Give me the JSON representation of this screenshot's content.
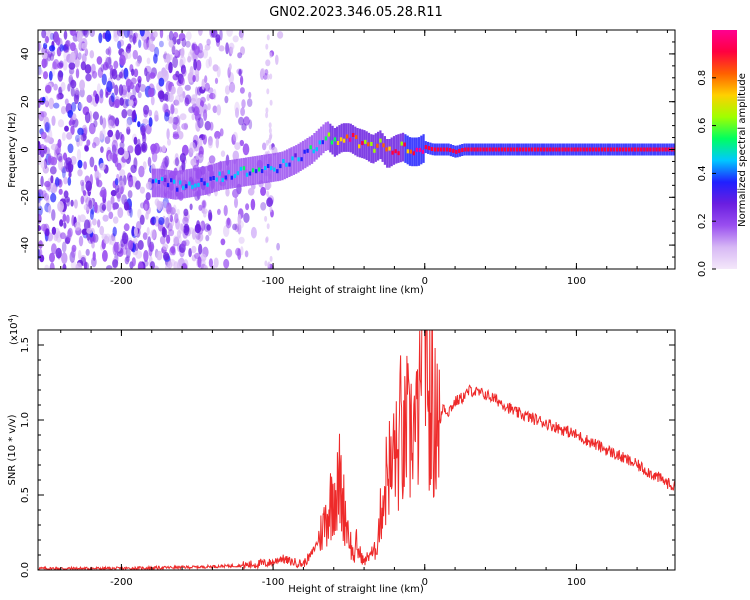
{
  "figure": {
    "title": "GN02.2023.346.05.28.R11"
  },
  "chart_data": [
    {
      "type": "heatmap",
      "panel": "spectrogram",
      "xlabel": "Height of straight line (km)",
      "ylabel": "Frequency (Hz)",
      "xlim": [
        -255,
        165
      ],
      "ylim": [
        -50,
        50
      ],
      "xticks": [
        -200,
        -100,
        0,
        100
      ],
      "xtick_labels": [
        "-200",
        "-100",
        "0",
        "100"
      ],
      "yticks": [
        -40,
        -20,
        0,
        20,
        40
      ],
      "ytick_labels": [
        "-40",
        "-20",
        "0",
        "20",
        "40"
      ],
      "colorbar": {
        "label": "Normalized spectral amplitude",
        "range": [
          0.0,
          1.0
        ],
        "ticks": [
          0.0,
          0.2,
          0.4,
          0.6,
          0.8
        ],
        "tick_labels": [
          "0.0",
          "0.2",
          "0.4",
          "0.6",
          "0.8"
        ],
        "colors": [
          "#f4e8fa",
          "#d7b8f5",
          "#9a4ff0",
          "#6a1ee0",
          "#2020ff",
          "#00c8ff",
          "#00ff60",
          "#a0ff00",
          "#ffd000",
          "#ff6000",
          "#ff0040",
          "#ff0090"
        ]
      },
      "ridge": {
        "x": [
          -175,
          -165,
          -155,
          -145,
          -135,
          -125,
          -115,
          -105,
          -95,
          -85,
          -75,
          -70,
          -65,
          -60,
          -55,
          -50,
          -45,
          -40,
          -35,
          -30,
          -25,
          -20,
          -15,
          -10,
          -5,
          0,
          5,
          10,
          15,
          20,
          25,
          30,
          40,
          60,
          100,
          165
        ],
        "freq": [
          -14,
          -15,
          -14,
          -13,
          -11,
          -10,
          -9,
          -8,
          -7,
          -4,
          0,
          3,
          6,
          3,
          5,
          5,
          3,
          2,
          0,
          2,
          -2,
          0,
          1,
          -1,
          -1,
          1,
          0,
          0,
          0,
          -1,
          0,
          0,
          0,
          0,
          0,
          0
        ],
        "amplitude": [
          0.45,
          0.4,
          0.45,
          0.45,
          0.45,
          0.5,
          0.5,
          0.45,
          0.45,
          0.4,
          0.55,
          0.5,
          0.6,
          0.75,
          0.85,
          0.9,
          0.9,
          0.85,
          0.9,
          0.85,
          0.9,
          0.9,
          0.9,
          0.95,
          0.95,
          0.95,
          0.95,
          0.95,
          0.95,
          0.95,
          0.95,
          0.95,
          0.95,
          0.95,
          0.95,
          0.95
        ]
      }
    },
    {
      "type": "line",
      "panel": "snr",
      "xlabel": "Height of straight line (km)",
      "ylabel": "SNR (10 * v/v)",
      "y_multiplier": "(x10",
      "y_multiplier_exp": "4",
      "y_multiplier_close": ")",
      "xlim": [
        -255,
        165
      ],
      "ylim": [
        0,
        1.6
      ],
      "xticks": [
        -200,
        -100,
        0,
        100
      ],
      "xtick_labels": [
        "-200",
        "-100",
        "0",
        "100"
      ],
      "yticks": [
        0.0,
        0.5,
        1.0,
        1.5
      ],
      "ytick_labels": [
        "0.0",
        "0.5",
        "1.0",
        "1.5"
      ],
      "color": "#ee2a2a",
      "series": [
        {
          "name": "SNR",
          "x": [
            -255,
            -200,
            -150,
            -120,
            -100,
            -95,
            -90,
            -80,
            -75,
            -70,
            -65,
            -62,
            -60,
            -58,
            -56,
            -54,
            -52,
            -50,
            -48,
            -46,
            -45,
            -44,
            -42,
            -40,
            -38,
            -36,
            -34,
            -32,
            -30,
            -28,
            -26,
            -24,
            -22,
            -20,
            -18,
            -16,
            -14,
            -12,
            -10,
            -8,
            -6,
            -4,
            -2,
            0,
            2,
            4,
            6,
            8,
            10,
            12,
            15,
            20,
            25,
            30,
            35,
            40,
            50,
            60,
            80,
            100,
            120,
            140,
            165
          ],
          "y": [
            0.01,
            0.01,
            0.02,
            0.03,
            0.05,
            0.08,
            0.06,
            0.04,
            0.1,
            0.2,
            0.35,
            0.45,
            0.55,
            0.5,
            0.6,
            0.45,
            0.35,
            0.25,
            0.12,
            0.08,
            0.2,
            0.12,
            0.1,
            0.05,
            0.08,
            0.12,
            0.1,
            0.15,
            0.3,
            0.45,
            0.55,
            0.75,
            0.6,
            0.85,
            0.7,
            0.95,
            0.75,
            1.0,
            0.8,
            1.05,
            0.85,
            1.1,
            0.95,
            1.6,
            0.9,
            1.3,
            0.85,
            1.2,
            0.95,
            1.1,
            1.05,
            1.12,
            1.15,
            1.2,
            1.18,
            1.17,
            1.12,
            1.05,
            0.98,
            0.9,
            0.8,
            0.7,
            0.55
          ]
        }
      ]
    }
  ]
}
